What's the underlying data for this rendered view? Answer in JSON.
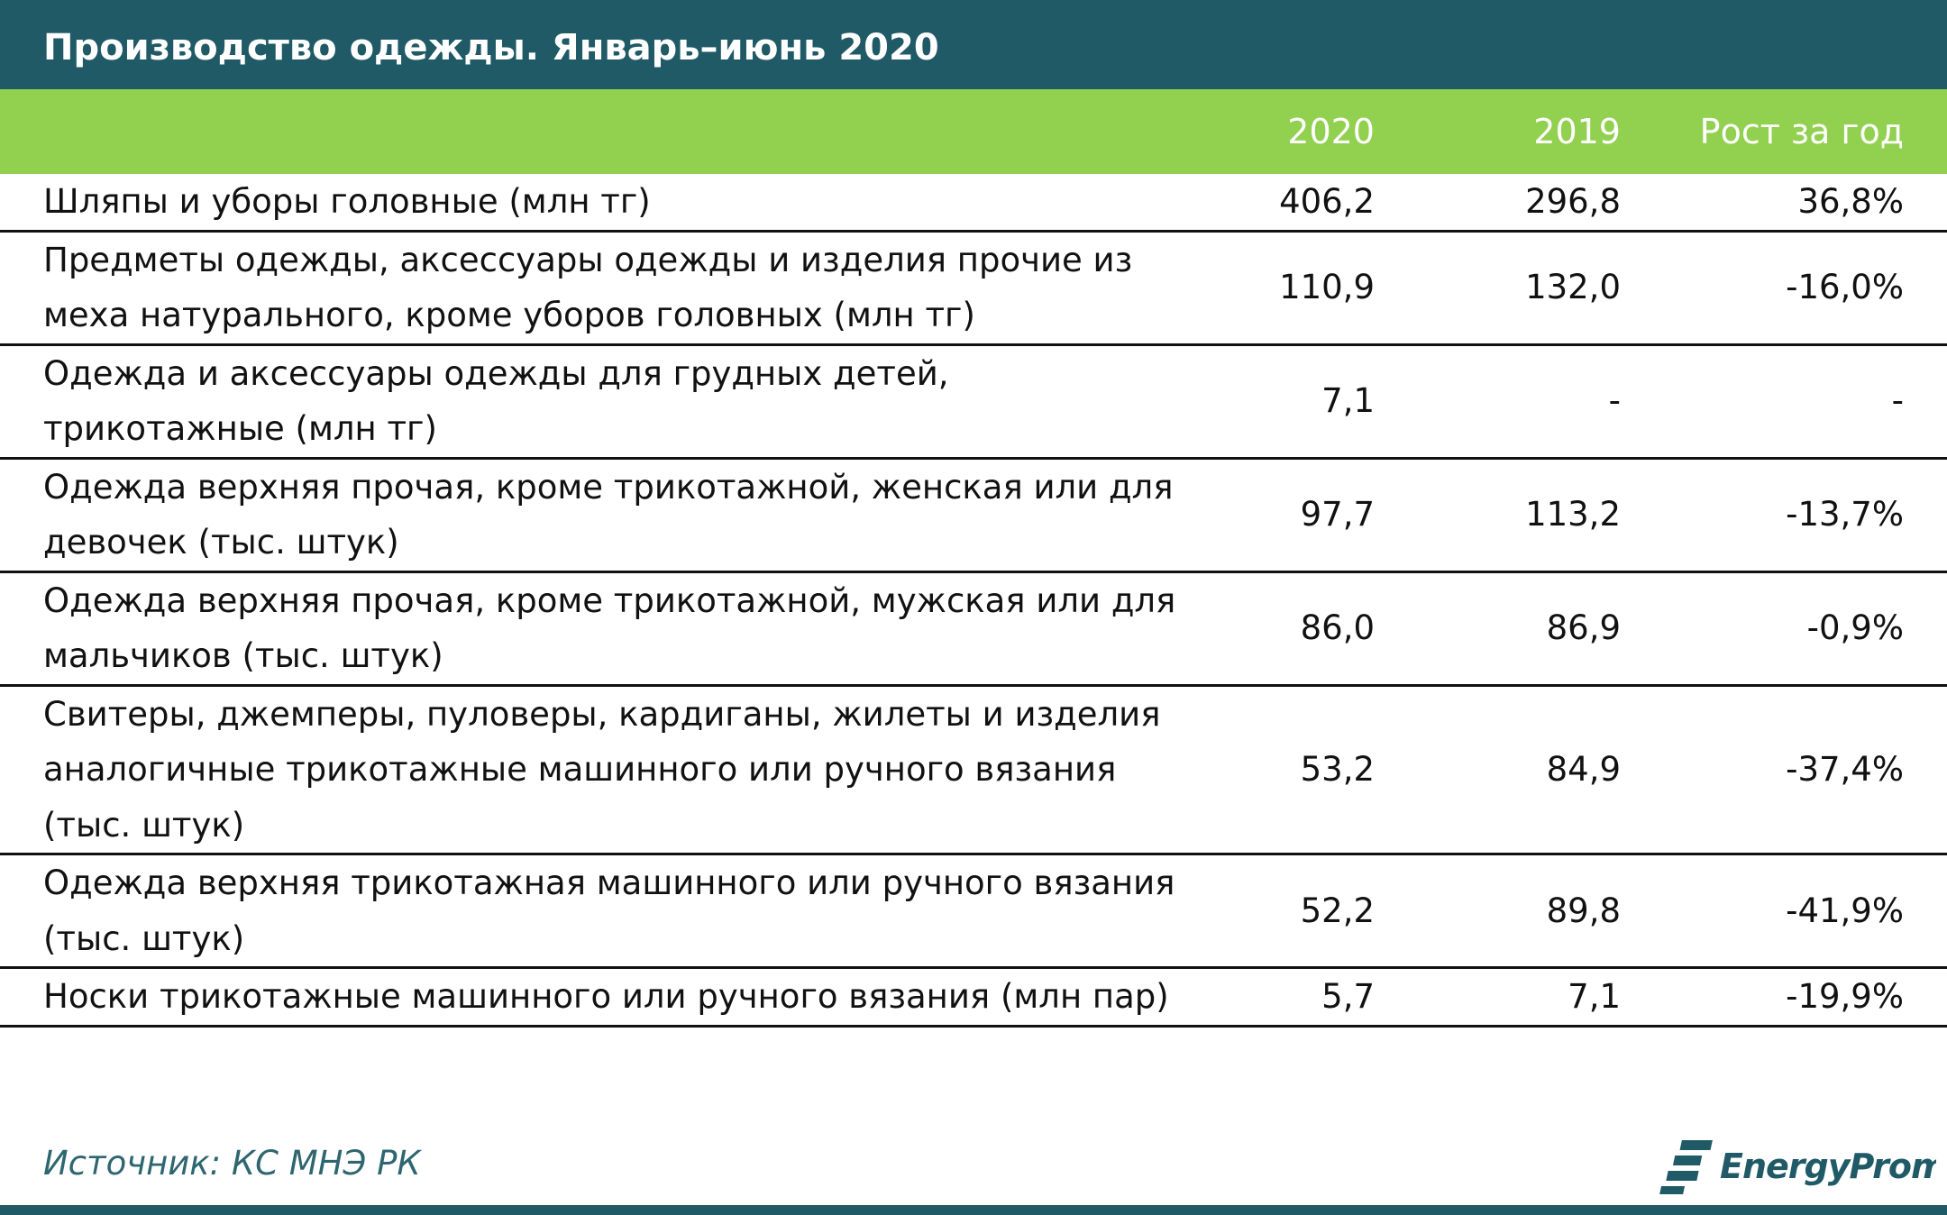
{
  "header": {
    "title": "Производство одежды. Январь–июнь 2020"
  },
  "table": {
    "columns": [
      "2020",
      "2019",
      "Рост за год"
    ],
    "rows": [
      [
        "Шляпы и уборы головные (млн тг)",
        "406,2",
        "296,8",
        "36,8%"
      ],
      [
        "Предметы одежды, аксессуары одежды и изделия прочие из меха натурального, кроме уборов головных (млн тг)",
        "110,9",
        "132,0",
        "-16,0%"
      ],
      [
        "Одежда и аксессуары одежды для грудных детей, трикотажные (млн тг)",
        "7,1",
        "-",
        "-"
      ],
      [
        "Одежда верхняя прочая, кроме трикотажной, женская или для девочек (тыс. штук)",
        "97,7",
        "113,2",
        "-13,7%"
      ],
      [
        "Одежда верхняя прочая, кроме трикотажной, мужская или для мальчиков (тыс. штук)",
        "86,0",
        "86,9",
        "-0,9%"
      ],
      [
        "Свитеры, джемперы, пуловеры, кардиганы, жилеты и изделия аналогичные трикотажные машинного или ручного вязания (тыс. штук)",
        "53,2",
        "84,9",
        "-37,4%"
      ],
      [
        "Одежда верхняя трикотажная машинного или ручного вязания (тыс. штук)",
        "52,2",
        "89,8",
        "-41,9%"
      ],
      [
        "Носки трикотажные машинного или ручного вязания (млн пар)",
        "5,7",
        "7,1",
        "-19,9%"
      ]
    ]
  },
  "footer": {
    "source": "Источник: КС МНЭ РК",
    "logo": "EnergyProm"
  }
}
